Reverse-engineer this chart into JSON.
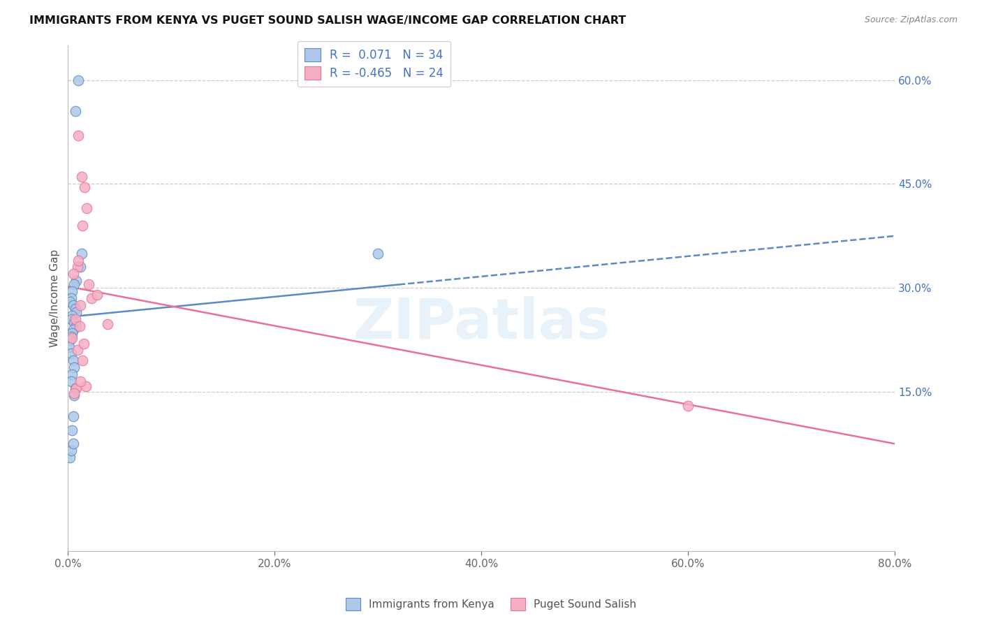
{
  "title": "IMMIGRANTS FROM KENYA VS PUGET SOUND SALISH WAGE/INCOME GAP CORRELATION CHART",
  "source": "Source: ZipAtlas.com",
  "ylabel": "Wage/Income Gap",
  "xlim": [
    0.0,
    0.8
  ],
  "ylim": [
    -0.08,
    0.65
  ],
  "yticks_right": [
    0.15,
    0.3,
    0.45,
    0.6
  ],
  "ytick_labels_right": [
    "15.0%",
    "30.0%",
    "45.0%",
    "60.0%"
  ],
  "xticks": [
    0.0,
    0.2,
    0.4,
    0.6,
    0.8
  ],
  "xtick_labels": [
    "0.0%",
    "20.0%",
    "40.0%",
    "60.0%",
    "80.0%"
  ],
  "blue_R": 0.071,
  "blue_N": 34,
  "pink_R": -0.465,
  "pink_N": 24,
  "blue_color": "#adc8e8",
  "pink_color": "#f5afc2",
  "blue_edge_color": "#5b8ac4",
  "pink_edge_color": "#e8709a",
  "blue_line_color": "#5b8ac4",
  "pink_line_color": "#e8709a",
  "watermark": "ZIPatlas",
  "blue_line_x0": 0.0,
  "blue_line_y0": 0.258,
  "blue_line_x1": 0.8,
  "blue_line_y1": 0.375,
  "pink_line_x0": 0.0,
  "pink_line_y0": 0.302,
  "pink_line_x1": 0.8,
  "pink_line_y1": 0.075,
  "blue_points_x": [
    0.01,
    0.007,
    0.013,
    0.012,
    0.008,
    0.006,
    0.004,
    0.003,
    0.002,
    0.005,
    0.007,
    0.008,
    0.004,
    0.003,
    0.006,
    0.008,
    0.005,
    0.004,
    0.003,
    0.002,
    0.001,
    0.003,
    0.005,
    0.006,
    0.004,
    0.003,
    0.007,
    0.006,
    0.005,
    0.004,
    0.3,
    0.002,
    0.003,
    0.005
  ],
  "blue_points_y": [
    0.6,
    0.555,
    0.35,
    0.33,
    0.31,
    0.305,
    0.295,
    0.285,
    0.28,
    0.275,
    0.27,
    0.265,
    0.26,
    0.255,
    0.25,
    0.245,
    0.24,
    0.235,
    0.23,
    0.225,
    0.215,
    0.205,
    0.195,
    0.185,
    0.175,
    0.165,
    0.155,
    0.145,
    0.115,
    0.095,
    0.35,
    0.055,
    0.065,
    0.075
  ],
  "pink_points_x": [
    0.01,
    0.013,
    0.016,
    0.018,
    0.014,
    0.009,
    0.005,
    0.02,
    0.023,
    0.012,
    0.007,
    0.011,
    0.028,
    0.038,
    0.004,
    0.009,
    0.014,
    0.017,
    0.008,
    0.6,
    0.01,
    0.012,
    0.006,
    0.015
  ],
  "pink_points_y": [
    0.52,
    0.46,
    0.445,
    0.415,
    0.39,
    0.33,
    0.32,
    0.305,
    0.285,
    0.275,
    0.255,
    0.245,
    0.29,
    0.248,
    0.228,
    0.21,
    0.195,
    0.158,
    0.155,
    0.13,
    0.34,
    0.165,
    0.148,
    0.22
  ]
}
